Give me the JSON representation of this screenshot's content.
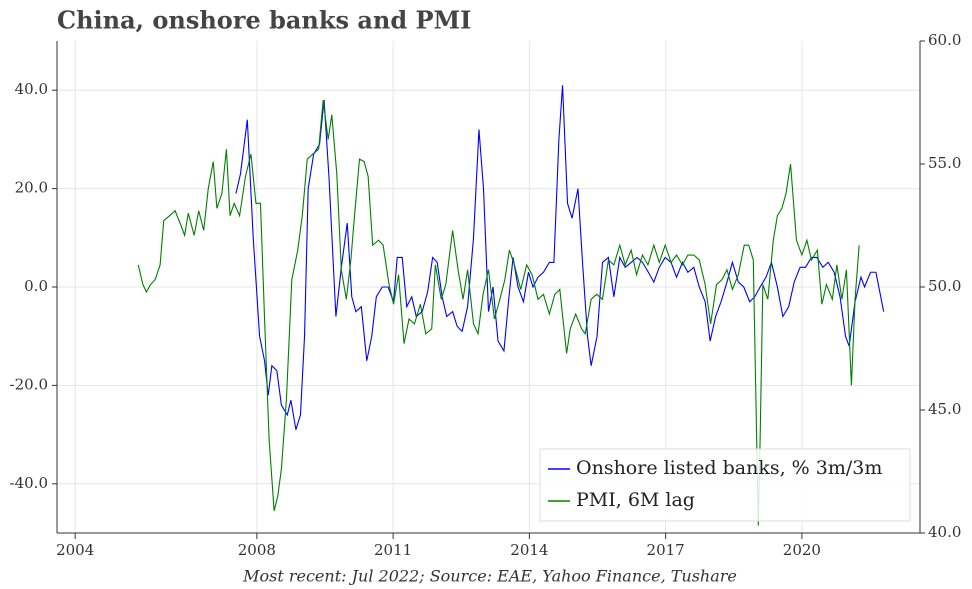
{
  "chart_data": {
    "type": "line",
    "title": "China, onshore banks and PMI",
    "caption": "Most recent: Jul 2022; Source: EAE, Yahoo Finance, Tushare",
    "xlim": [
      2003.6,
      2022.6
    ],
    "xticks": [
      2004,
      2008,
      2011,
      2014,
      2017,
      2020
    ],
    "ylim": [
      -50,
      50
    ],
    "yticks": [
      {
        "value": 40,
        "label": "40.0"
      },
      {
        "value": 20,
        "label": "20.0"
      },
      {
        "value": 0,
        "label": "0.0"
      },
      {
        "value": -20,
        "label": "-20.0"
      },
      {
        "value": -40,
        "label": "-40.0"
      }
    ],
    "y2lim": [
      40,
      60
    ],
    "y2ticks": [
      {
        "value": 40,
        "label": "40.0"
      },
      {
        "value": 45,
        "label": "45.0"
      },
      {
        "value": 50,
        "label": "50.0"
      },
      {
        "value": 55,
        "label": "55.0"
      },
      {
        "value": 60,
        "label": "60.0"
      }
    ],
    "grid": true,
    "legend": "lower right",
    "series": [
      {
        "name": "Onshore listed banks, % 3m/3m",
        "color": "#0000ff",
        "x": [
          2007.54,
          2007.64,
          2007.79,
          2007.92,
          2008.06,
          2008.17,
          2008.25,
          2008.33,
          2008.44,
          2008.54,
          2008.67,
          2008.75,
          2008.86,
          2008.96,
          2009.05,
          2009.13,
          2009.25,
          2009.38,
          2009.48,
          2009.59,
          2009.74,
          2009.86,
          2009.99,
          2010.09,
          2010.18,
          2010.3,
          2010.42,
          2010.53,
          2010.63,
          2010.76,
          2010.89,
          2011.01,
          2011.09,
          2011.2,
          2011.3,
          2011.41,
          2011.51,
          2011.64,
          2011.76,
          2011.87,
          2011.97,
          2012.08,
          2012.18,
          2012.31,
          2012.41,
          2012.52,
          2012.64,
          2012.77,
          2012.89,
          2012.99,
          2013.1,
          2013.2,
          2013.31,
          2013.44,
          2013.54,
          2013.64,
          2013.75,
          2013.87,
          2013.98,
          2014.08,
          2014.19,
          2014.31,
          2014.44,
          2014.54,
          2014.65,
          2014.73,
          2014.84,
          2014.94,
          2015.07,
          2015.17,
          2015.28,
          2015.36,
          2015.49,
          2015.61,
          2015.74,
          2015.86,
          2015.99,
          2016.11,
          2016.24,
          2016.37,
          2016.49,
          2016.62,
          2016.74,
          2016.86,
          2016.99,
          2017.12,
          2017.24,
          2017.37,
          2017.49,
          2017.62,
          2017.74,
          2017.87,
          2017.98,
          2018.1,
          2018.22,
          2018.35,
          2018.47,
          2018.6,
          2018.72,
          2018.85,
          2018.96,
          2019.08,
          2019.21,
          2019.33,
          2019.46,
          2019.58,
          2019.71,
          2019.83,
          2019.96,
          2020.08,
          2020.21,
          2020.33,
          2020.46,
          2020.58,
          2020.71,
          2020.84,
          2020.96,
          2021.04,
          2021.17,
          2021.3,
          2021.38,
          2021.51,
          2021.63,
          2021.8
        ],
        "values": [
          19,
          23,
          34,
          10,
          -10,
          -15,
          -22,
          -16,
          -17,
          -24,
          -26,
          -23,
          -29,
          -26,
          -10,
          20,
          27,
          29,
          38,
          22,
          -6,
          4,
          13,
          -2,
          -5,
          -4,
          -15,
          -10,
          -2,
          0,
          0,
          -3,
          6,
          6,
          -4,
          -2,
          -6,
          -5,
          -1,
          6,
          5,
          -2,
          -6,
          -5,
          -8,
          -9,
          -4,
          10,
          32,
          20,
          -5,
          0,
          -11,
          -13,
          -3,
          6,
          0,
          -3,
          3,
          0,
          2,
          3,
          5,
          5,
          30,
          41,
          17,
          14,
          20,
          5,
          -10,
          -16,
          -10,
          5,
          6,
          -2,
          6,
          4,
          5,
          6,
          5,
          3,
          1,
          4,
          6,
          5,
          2,
          5,
          3,
          4,
          0,
          -3,
          -11,
          -6,
          -3,
          1,
          5,
          1,
          0,
          -3,
          -2,
          0,
          2,
          5,
          0,
          -6,
          -4,
          1,
          4,
          4,
          6,
          6,
          4,
          5,
          3,
          -2,
          -10,
          -12,
          -3,
          2,
          0,
          3,
          3,
          -5
        ]
      },
      {
        "name": "PMI, 6M lag",
        "color": "#008000",
        "axis": "y2",
        "x": [
          2005.39,
          2005.49,
          2005.57,
          2005.66,
          2005.76,
          2005.87,
          2005.95,
          2006.08,
          2006.2,
          2006.33,
          2006.41,
          2006.49,
          2006.62,
          2006.72,
          2006.83,
          2006.93,
          2007.04,
          2007.12,
          2007.23,
          2007.33,
          2007.41,
          2007.5,
          2007.62,
          2007.75,
          2007.87,
          2007.98,
          2008.08,
          2008.17,
          2008.27,
          2008.38,
          2008.46,
          2008.54,
          2008.65,
          2008.77,
          2008.9,
          2009.0,
          2009.11,
          2009.23,
          2009.36,
          2009.46,
          2009.57,
          2009.65,
          2009.76,
          2009.86,
          2009.97,
          2010.07,
          2010.15,
          2010.26,
          2010.36,
          2010.45,
          2010.55,
          2010.68,
          2010.78,
          2010.91,
          2011.01,
          2011.12,
          2011.24,
          2011.35,
          2011.47,
          2011.6,
          2011.72,
          2011.85,
          2011.93,
          2012.06,
          2012.16,
          2012.31,
          2012.43,
          2012.54,
          2012.64,
          2012.77,
          2012.87,
          2012.98,
          2013.1,
          2013.23,
          2013.35,
          2013.46,
          2013.56,
          2013.67,
          2013.81,
          2013.94,
          2014.06,
          2014.19,
          2014.31,
          2014.44,
          2014.56,
          2014.67,
          2014.82,
          2014.9,
          2015.02,
          2015.15,
          2015.23,
          2015.36,
          2015.48,
          2015.61,
          2015.74,
          2015.86,
          2015.99,
          2016.11,
          2016.24,
          2016.36,
          2016.49,
          2016.61,
          2016.74,
          2016.86,
          2016.99,
          2017.12,
          2017.24,
          2017.37,
          2017.49,
          2017.62,
          2017.74,
          2017.87,
          2017.99,
          2018.12,
          2018.24,
          2018.35,
          2018.47,
          2018.6,
          2018.73,
          2018.83,
          2018.93,
          2019.04,
          2019.08,
          2019.14,
          2019.25,
          2019.37,
          2019.46,
          2019.56,
          2019.65,
          2019.75,
          2019.88,
          2020.0,
          2020.11,
          2020.21,
          2020.34,
          2020.44,
          2020.54,
          2020.67,
          2020.77,
          2020.88,
          2020.98,
          2021.09,
          2021.17,
          2021.26
        ],
        "values": [
          50.9,
          50.1,
          49.8,
          50.1,
          50.3,
          50.9,
          52.7,
          52.9,
          53.1,
          52.5,
          52.1,
          53.0,
          52.1,
          53.1,
          52.3,
          54.0,
          55.1,
          53.2,
          53.8,
          55.6,
          52.9,
          53.4,
          52.9,
          54.5,
          55.4,
          53.4,
          53.4,
          48.7,
          43.8,
          40.9,
          41.5,
          42.6,
          45.4,
          50.3,
          51.5,
          52.9,
          55.2,
          55.4,
          55.6,
          57.6,
          56.0,
          57.0,
          54.6,
          50.7,
          49.5,
          51.1,
          52.9,
          55.2,
          55.1,
          54.5,
          51.7,
          51.9,
          51.7,
          50.1,
          49.3,
          50.5,
          47.7,
          48.7,
          48.5,
          49.3,
          48.1,
          48.3,
          50.9,
          49.5,
          50.1,
          52.3,
          50.7,
          49.5,
          50.7,
          48.5,
          48.1,
          49.7,
          50.7,
          48.7,
          49.5,
          50.3,
          51.5,
          50.9,
          49.9,
          50.9,
          50.5,
          49.5,
          49.7,
          48.9,
          49.7,
          49.9,
          47.3,
          48.3,
          48.9,
          48.3,
          48.1,
          49.5,
          49.7,
          49.5,
          51.1,
          50.9,
          51.7,
          50.9,
          51.5,
          50.5,
          51.3,
          50.9,
          51.7,
          51.0,
          51.7,
          51.0,
          51.3,
          50.9,
          51.3,
          51.3,
          51.1,
          50.1,
          48.5,
          50.1,
          50.3,
          50.7,
          49.9,
          50.5,
          51.7,
          51.7,
          51.1,
          40.3,
          43.8,
          50.1,
          49.5,
          51.9,
          52.9,
          53.2,
          53.8,
          55.0,
          51.9,
          51.3,
          51.9,
          51.1,
          51.5,
          49.3,
          50.1,
          49.5,
          50.9,
          49.5,
          50.7,
          46.0,
          49.5,
          51.7
        ]
      }
    ]
  }
}
